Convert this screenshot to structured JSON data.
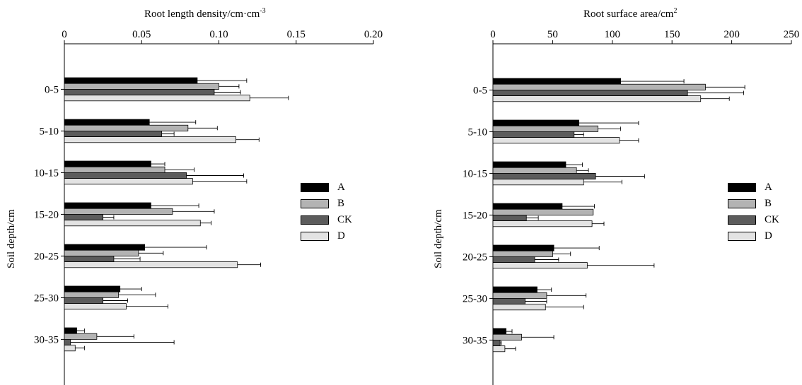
{
  "chart_data": [
    {
      "type": "bar",
      "orientation": "horizontal",
      "title": "Root length density/cm·cm",
      "title_superscript": "-3",
      "xlabel": "Root length density/cm·cm-3",
      "ylabel": "Soil depth/cm",
      "xlim": [
        0,
        0.2
      ],
      "xticks": [
        "0",
        "0.05",
        "0.10",
        "0.15",
        "0.20"
      ],
      "xtick_values": [
        0,
        0.05,
        0.1,
        0.15,
        0.2
      ],
      "categories": [
        "0-5",
        "5-10",
        "10-15",
        "15-20",
        "20-25",
        "25-30",
        "30-35"
      ],
      "legend_position": "right",
      "series": [
        {
          "name": "A",
          "color": "#000000",
          "values": [
            0.086,
            0.055,
            0.056,
            0.056,
            0.052,
            0.036,
            0.008
          ],
          "errors": [
            0.032,
            0.03,
            0.009,
            0.031,
            0.04,
            0.014,
            0.005
          ]
        },
        {
          "name": "B",
          "color": "#b3b3b3",
          "values": [
            0.1,
            0.08,
            0.065,
            0.07,
            0.048,
            0.035,
            0.021
          ],
          "errors": [
            0.013,
            0.019,
            0.019,
            0.027,
            0.016,
            0.024,
            0.024
          ]
        },
        {
          "name": "CK",
          "color": "#5c5c5c",
          "values": [
            0.097,
            0.063,
            0.079,
            0.025,
            0.032,
            0.025,
            0.004
          ],
          "errors": [
            0.017,
            0.008,
            0.037,
            0.007,
            0.017,
            0.016,
            0.067
          ]
        },
        {
          "name": "D",
          "color": "#e3e3e3",
          "values": [
            0.12,
            0.111,
            0.083,
            0.088,
            0.112,
            0.04,
            0.007
          ],
          "errors": [
            0.025,
            0.015,
            0.035,
            0.007,
            0.015,
            0.027,
            0.006
          ]
        }
      ]
    },
    {
      "type": "bar",
      "orientation": "horizontal",
      "title": "Root surface area/cm",
      "title_superscript": "2",
      "xlabel": "Root surface area/cm2",
      "ylabel": "Soil depth/cm",
      "xlim": [
        0,
        250
      ],
      "xticks": [
        "0",
        "50",
        "100",
        "150",
        "200",
        "250"
      ],
      "xtick_values": [
        0,
        50,
        100,
        150,
        200,
        250
      ],
      "categories": [
        "0-5",
        "5-10",
        "10-15",
        "15-20",
        "20-25",
        "25-30",
        "30-35"
      ],
      "legend_position": "right",
      "series": [
        {
          "name": "A",
          "color": "#000000",
          "values": [
            107,
            72,
            61,
            58,
            51,
            37,
            11
          ],
          "errors": [
            53,
            50,
            14,
            27,
            38,
            12,
            5
          ]
        },
        {
          "name": "B",
          "color": "#b3b3b3",
          "values": [
            178,
            88,
            70,
            84,
            50,
            45,
            24
          ],
          "errors": [
            33,
            19,
            10,
            0,
            15,
            33,
            27
          ]
        },
        {
          "name": "CK",
          "color": "#5c5c5c",
          "values": [
            163,
            68,
            86,
            28,
            35,
            27,
            6
          ],
          "errors": [
            47,
            8,
            41,
            10,
            20,
            18,
            1
          ]
        },
        {
          "name": "D",
          "color": "#e3e3e3",
          "values": [
            174,
            106,
            76,
            83,
            79,
            44,
            10
          ],
          "errors": [
            24,
            16,
            32,
            10,
            56,
            32,
            9
          ]
        }
      ]
    }
  ]
}
